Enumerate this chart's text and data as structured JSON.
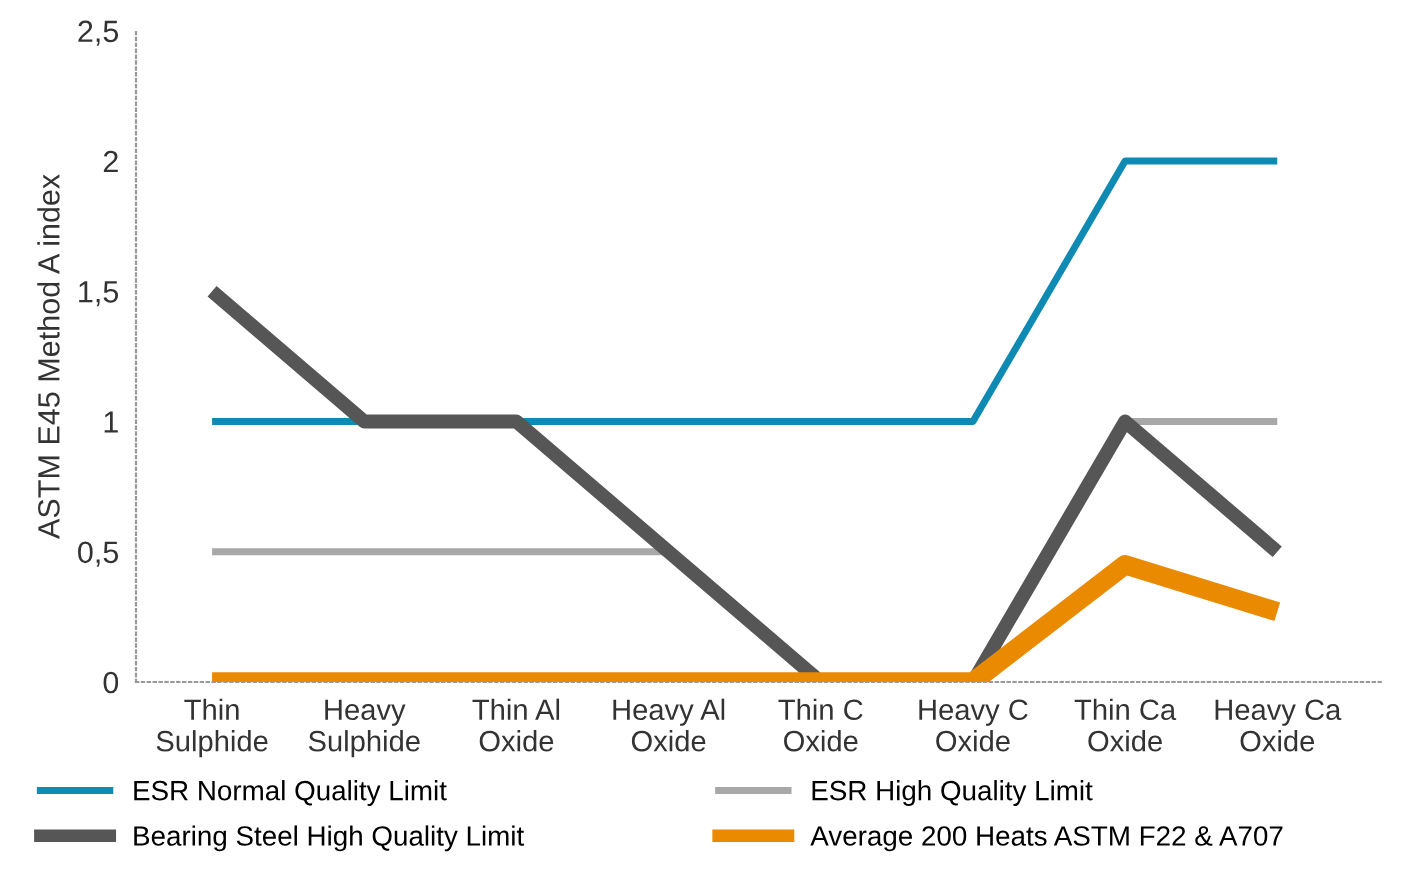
{
  "chart_data": {
    "type": "line",
    "ylabel": "ASTM E45 Method A index",
    "categories": [
      "Thin\nSulphide",
      "Heavy\nSulphide",
      "Thin Al\nOxide",
      "Heavy Al\nOxide",
      "Thin C\nOxide",
      "Heavy C\nOxide",
      "Thin Ca\nOxide",
      "Heavy Ca\nOxide"
    ],
    "series": [
      {
        "name": "ESR Normal Quality Limit",
        "color": "#0f8ab3",
        "values": [
          1,
          1,
          1,
          1,
          1,
          1,
          2,
          2
        ]
      },
      {
        "name": "ESR High Quality Limit",
        "color": "#a8a8a8",
        "values": [
          0.5,
          0.5,
          0.5,
          0.5,
          0,
          null,
          1,
          1
        ]
      },
      {
        "name": "Bearing Steel High Quality Limit",
        "color": "#565656",
        "values": [
          1.5,
          1,
          1,
          0.5,
          0,
          0,
          1,
          0.5
        ]
      },
      {
        "name": "Average 200 Heats ASTM F22 & A707",
        "color": "#e98a00",
        "values": [
          0,
          0,
          0,
          0,
          0,
          0,
          0.45,
          0.27
        ]
      }
    ],
    "ylim": [
      0,
      2.5
    ],
    "yticks": [
      0,
      {
        "value": 0.5,
        "label": "0,5"
      },
      1,
      {
        "value": 1.5,
        "label": "1,5"
      },
      2,
      {
        "value": 2.5,
        "label": "2,5"
      }
    ],
    "grid": false,
    "legend": "bottom",
    "marker": "none",
    "line_style": "solid"
  }
}
